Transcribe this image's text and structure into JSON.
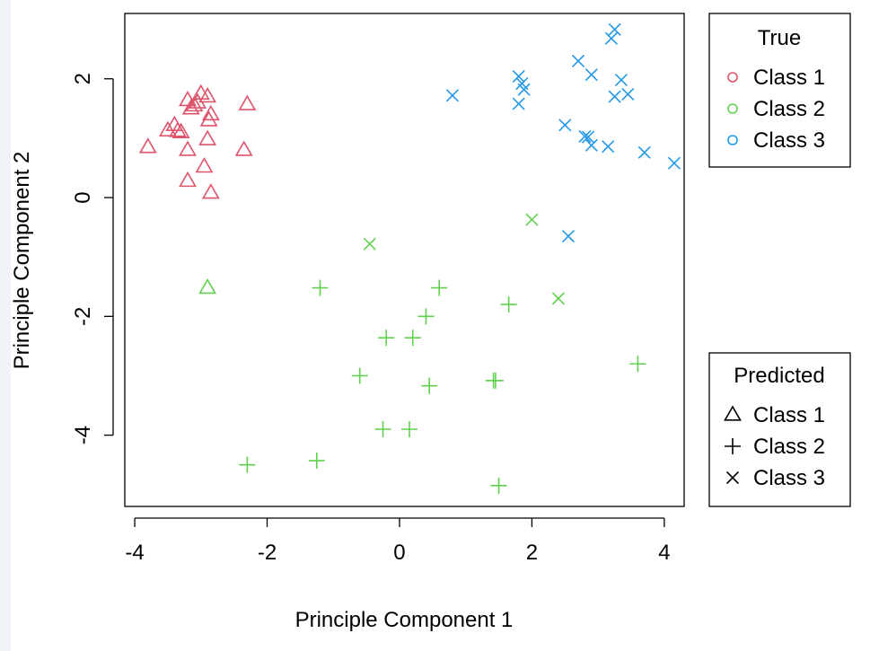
{
  "chart_data": {
    "type": "scatter",
    "title": "",
    "xlabel": "Principle Component 1",
    "ylabel": "Principle Component 2",
    "xlim": [
      -4.15,
      4.3
    ],
    "ylim": [
      -5.2,
      3.1
    ],
    "xticks": [
      -4,
      -2,
      0,
      2,
      4
    ],
    "yticks": [
      -4,
      -2,
      0,
      2
    ],
    "xtick_labels": [
      "-4",
      "-2",
      "0",
      "2",
      "4"
    ],
    "ytick_labels": [
      "-4",
      "-2",
      "0",
      "2"
    ],
    "grid": false,
    "colors": {
      "class1": "#df536b",
      "class2": "#61d04f",
      "class3": "#2297e6"
    },
    "legend_true": {
      "title": "True",
      "placement": "top-right",
      "entries": [
        {
          "label": "Class 1",
          "color": "#df536b",
          "marker": "circle"
        },
        {
          "label": "Class 2",
          "color": "#61d04f",
          "marker": "circle"
        },
        {
          "label": "Class 3",
          "color": "#2297e6",
          "marker": "circle"
        }
      ]
    },
    "legend_predicted": {
      "title": "Predicted",
      "placement": "bottom-right",
      "entries": [
        {
          "label": "Class 1",
          "color": "#000000",
          "marker": "triangle"
        },
        {
          "label": "Class 2",
          "color": "#000000",
          "marker": "plus"
        },
        {
          "label": "Class 3",
          "color": "#000000",
          "marker": "cross"
        }
      ]
    },
    "series": [
      {
        "true_class": 1,
        "predicted": 1,
        "marker": "triangle",
        "points": [
          [
            -3.8,
            0.85
          ],
          [
            -3.5,
            1.13
          ],
          [
            -3.4,
            1.22
          ],
          [
            -3.35,
            1.12
          ],
          [
            -3.3,
            1.1
          ],
          [
            -3.2,
            1.64
          ],
          [
            -3.15,
            1.5
          ],
          [
            -3.1,
            1.55
          ],
          [
            -3.05,
            1.6
          ],
          [
            -3.0,
            1.75
          ],
          [
            -2.9,
            1.7
          ],
          [
            -2.85,
            1.4
          ],
          [
            -2.88,
            1.3
          ],
          [
            -3.2,
            0.8
          ],
          [
            -2.9,
            0.98
          ],
          [
            -2.95,
            0.52
          ],
          [
            -3.2,
            0.28
          ],
          [
            -2.85,
            0.08
          ],
          [
            -2.35,
            0.8
          ],
          [
            -2.3,
            1.57
          ]
        ]
      },
      {
        "true_class": 1,
        "predicted": 1,
        "marker": "triangle",
        "note_color": "class2",
        "points": [
          [
            -2.9,
            -1.52
          ]
        ]
      },
      {
        "true_class": 2,
        "predicted": 2,
        "marker": "plus",
        "points": [
          [
            -1.2,
            -1.52
          ],
          [
            0.6,
            -1.52
          ],
          [
            0.4,
            -2.0
          ],
          [
            1.65,
            -1.8
          ],
          [
            -0.2,
            -2.36
          ],
          [
            0.2,
            -2.36
          ],
          [
            -0.6,
            -3.0
          ],
          [
            0.45,
            -3.17
          ],
          [
            1.45,
            -3.08
          ],
          [
            1.42,
            -3.08
          ],
          [
            3.6,
            -2.8
          ],
          [
            -0.25,
            -3.9
          ],
          [
            0.15,
            -3.9
          ],
          [
            -2.3,
            -4.5
          ],
          [
            -1.25,
            -4.43
          ],
          [
            1.5,
            -4.85
          ]
        ]
      },
      {
        "true_class": 2,
        "predicted": 3,
        "marker": "cross",
        "points": [
          [
            -0.45,
            -0.78
          ],
          [
            2.0,
            -0.37
          ],
          [
            2.4,
            -1.7
          ]
        ]
      },
      {
        "true_class": 3,
        "predicted": 3,
        "marker": "cross",
        "points": [
          [
            0.8,
            1.72
          ],
          [
            1.8,
            2.04
          ],
          [
            1.85,
            1.92
          ],
          [
            1.88,
            1.82
          ],
          [
            1.8,
            1.58
          ],
          [
            2.7,
            2.3
          ],
          [
            2.9,
            2.07
          ],
          [
            3.2,
            2.68
          ],
          [
            3.25,
            2.83
          ],
          [
            3.35,
            1.98
          ],
          [
            3.45,
            1.74
          ],
          [
            3.25,
            1.7
          ],
          [
            2.5,
            1.22
          ],
          [
            2.8,
            1.03
          ],
          [
            2.85,
            1.02
          ],
          [
            2.9,
            0.88
          ],
          [
            3.15,
            0.86
          ],
          [
            3.7,
            0.76
          ],
          [
            4.15,
            0.58
          ],
          [
            2.55,
            -0.65
          ]
        ]
      }
    ]
  }
}
